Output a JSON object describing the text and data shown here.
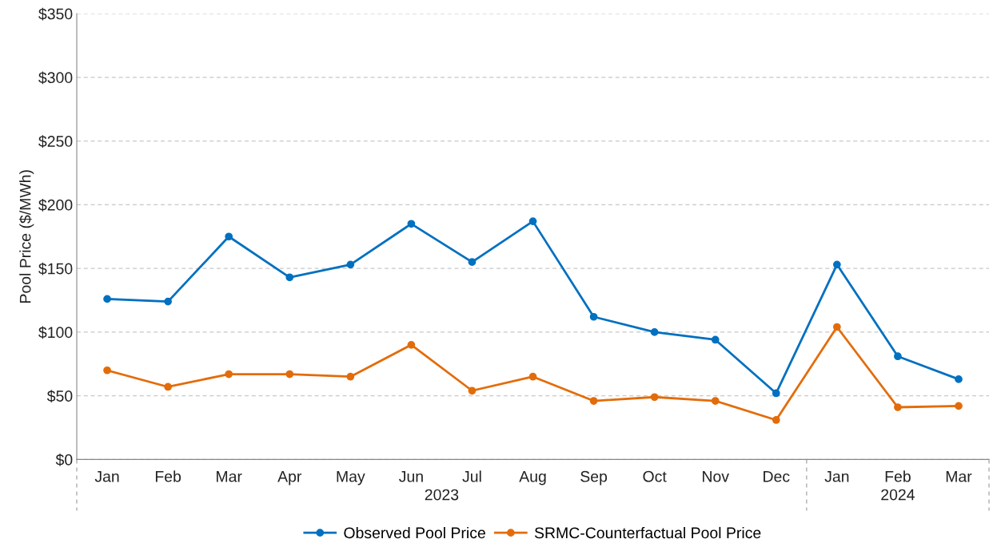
{
  "chart_data": {
    "type": "line",
    "ylabel": "Pool Price ($/MWh)",
    "categories": [
      "Jan",
      "Feb",
      "Mar",
      "Apr",
      "May",
      "Jun",
      "Jul",
      "Aug",
      "Sep",
      "Oct",
      "Nov",
      "Dec",
      "Jan",
      "Feb",
      "Mar"
    ],
    "series": [
      {
        "name": "Observed Pool Price",
        "color": "#0070c0",
        "values": [
          126,
          124,
          175,
          143,
          153,
          185,
          155,
          187,
          112,
          100,
          94,
          52,
          153,
          81,
          63
        ]
      },
      {
        "name": "SRMC-Counterfactual Pool Price",
        "color": "#e36c0a",
        "values": [
          70,
          57,
          67,
          67,
          65,
          90,
          54,
          65,
          46,
          49,
          46,
          31,
          104,
          41,
          42
        ]
      }
    ],
    "ylim": [
      0,
      350
    ],
    "yticks": [
      {
        "value": 0,
        "label": "$0"
      },
      {
        "value": 50,
        "label": "$50"
      },
      {
        "value": 100,
        "label": "$100"
      },
      {
        "value": 150,
        "label": "$150"
      },
      {
        "value": 200,
        "label": "$200"
      },
      {
        "value": 250,
        "label": "$250"
      },
      {
        "value": 300,
        "label": "$300"
      },
      {
        "value": 350,
        "label": "$350"
      }
    ],
    "annotations": [
      "2023",
      "2024"
    ],
    "grid": "y",
    "legend": "bottom",
    "marker": "circle",
    "line_style": "solid"
  }
}
